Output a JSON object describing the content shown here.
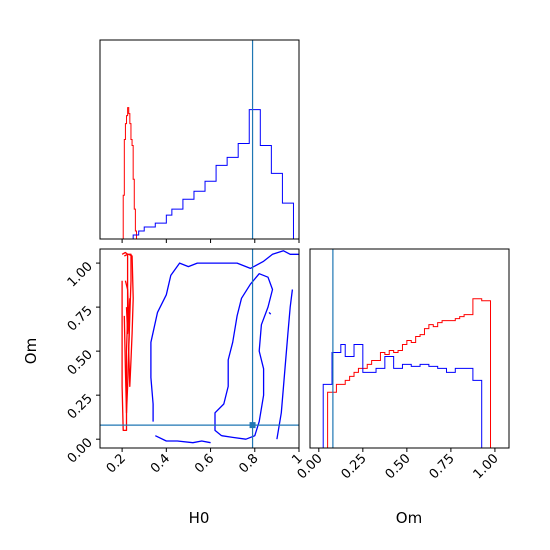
{
  "chart_data": {
    "type": "corner",
    "title": "",
    "parameters": [
      "H0",
      "Om"
    ],
    "truth": {
      "H0": 0.79,
      "Om": 0.08
    },
    "colors": {
      "series_red": "#ff0000",
      "series_blue": "#0000ff",
      "truth": "#1f77b4"
    },
    "panels": [
      {
        "id": "H0-marginal",
        "type": "histogram-step",
        "xlim": [
          0.1,
          1.0
        ],
        "xticks": [
          0.2,
          0.4,
          0.6,
          0.8,
          1.0
        ],
        "series": [
          {
            "color": "red",
            "x": [
              0.2,
              0.205,
              0.21,
              0.215,
              0.22,
              0.225,
              0.23,
              0.235,
              0.24,
              0.245,
              0.25,
              0.255,
              0.26,
              0.265
            ],
            "density": [
              0.0,
              0.22,
              0.5,
              0.58,
              0.62,
              0.66,
              0.63,
              0.58,
              0.5,
              0.47,
              0.3,
              0.15,
              0.04,
              0.0
            ]
          },
          {
            "color": "blue",
            "x": [
              0.1,
              0.125,
              0.15,
              0.175,
              0.2,
              0.225,
              0.25,
              0.275,
              0.3,
              0.325,
              0.35,
              0.375,
              0.4,
              0.425,
              0.45,
              0.475,
              0.5,
              0.525,
              0.55,
              0.575,
              0.6,
              0.625,
              0.65,
              0.675,
              0.7,
              0.725,
              0.75,
              0.775,
              0.8,
              0.825,
              0.85,
              0.875,
              0.9,
              0.925,
              0.95,
              0.975,
              1.0
            ],
            "density": [
              0.0,
              0.0,
              0.0,
              0.0,
              0.0,
              0.0,
              0.02,
              0.04,
              0.06,
              0.06,
              0.08,
              0.08,
              0.12,
              0.15,
              0.15,
              0.2,
              0.2,
              0.24,
              0.24,
              0.29,
              0.29,
              0.37,
              0.37,
              0.41,
              0.41,
              0.48,
              0.48,
              0.65,
              0.65,
              0.47,
              0.47,
              0.33,
              0.33,
              0.18,
              0.18,
              0.0,
              0.0
            ]
          }
        ]
      },
      {
        "id": "H0-Om-joint",
        "type": "contour",
        "xlabel": "H0",
        "ylabel": "Om",
        "xlim": [
          0.1,
          1.0
        ],
        "ylim": [
          -0.05,
          1.08
        ],
        "xticks": [
          0.2,
          0.4,
          0.6,
          0.8,
          1.0
        ],
        "yticks": [
          0.0,
          0.25,
          0.5,
          0.75,
          1.0
        ],
        "ytick_labels": [
          "0.00",
          "0.25",
          "0.50",
          "0.75",
          "1.00"
        ],
        "contours": [
          {
            "color": "red",
            "points": [
              [
                0.2,
                1.05
              ],
              [
                0.215,
                1.06
              ],
              [
                0.225,
                1.05
              ],
              [
                0.225,
                0.9
              ],
              [
                0.225,
                0.7
              ],
              [
                0.22,
                0.5
              ],
              [
                0.22,
                0.35
              ],
              [
                0.22,
                0.2
              ],
              [
                0.22,
                0.05
              ],
              [
                0.205,
                0.05
              ],
              [
                0.2,
                0.3
              ],
              [
                0.2,
                0.6
              ],
              [
                0.2,
                0.9
              ]
            ]
          },
          {
            "color": "red",
            "points": [
              [
                0.21,
                1.04
              ],
              [
                0.225,
                1.05
              ],
              [
                0.24,
                1.05
              ],
              [
                0.24,
                0.9
              ],
              [
                0.235,
                0.7
              ],
              [
                0.23,
                0.5
              ],
              [
                0.225,
                0.3
              ],
              [
                0.22,
                0.15
              ],
              [
                0.215,
                0.4
              ],
              [
                0.21,
                0.7
              ]
            ]
          },
          {
            "color": "red",
            "points": [
              [
                0.23,
                1.05
              ],
              [
                0.245,
                1.04
              ],
              [
                0.25,
                0.8
              ],
              [
                0.245,
                0.6
              ],
              [
                0.24,
                0.45
              ],
              [
                0.235,
                0.3
              ],
              [
                0.23,
                0.5
              ],
              [
                0.235,
                0.8
              ]
            ]
          },
          {
            "color": "red",
            "points": [
              [
                0.215,
                0.9
              ],
              [
                0.225,
                0.85
              ],
              [
                0.23,
                0.7
              ],
              [
                0.225,
                0.6
              ],
              [
                0.22,
                0.75
              ]
            ]
          },
          {
            "color": "blue",
            "points": [
              [
                0.34,
                0.1
              ],
              [
                0.34,
                0.2
              ],
              [
                0.33,
                0.35
              ],
              [
                0.33,
                0.55
              ],
              [
                0.36,
                0.72
              ],
              [
                0.4,
                0.82
              ],
              [
                0.42,
                0.93
              ],
              [
                0.46,
                1.0
              ],
              [
                0.5,
                0.98
              ],
              [
                0.54,
                1.0
              ],
              [
                0.6,
                1.0
              ],
              [
                0.66,
                1.0
              ],
              [
                0.72,
                1.0
              ],
              [
                0.78,
                0.97
              ],
              [
                0.84,
                1.01
              ],
              [
                0.88,
                1.05
              ],
              [
                0.93,
                1.07
              ],
              [
                0.96,
                1.05
              ],
              [
                1.0,
                1.05
              ]
            ]
          },
          {
            "color": "blue",
            "points": [
              [
                0.35,
                0.02
              ],
              [
                0.4,
                -0.01
              ],
              [
                0.45,
                -0.01
              ],
              [
                0.52,
                -0.02
              ],
              [
                0.56,
                -0.01
              ],
              [
                0.6,
                -0.02
              ]
            ]
          },
          {
            "color": "blue",
            "points": [
              [
                0.65,
                0.02
              ],
              [
                0.62,
                0.05
              ],
              [
                0.62,
                0.15
              ],
              [
                0.66,
                0.2
              ],
              [
                0.68,
                0.3
              ],
              [
                0.68,
                0.45
              ],
              [
                0.7,
                0.55
              ],
              [
                0.72,
                0.7
              ],
              [
                0.74,
                0.8
              ],
              [
                0.78,
                0.88
              ],
              [
                0.82,
                0.94
              ],
              [
                0.86,
                0.92
              ],
              [
                0.88,
                0.85
              ],
              [
                0.86,
                0.75
              ],
              [
                0.83,
                0.65
              ],
              [
                0.82,
                0.5
              ],
              [
                0.84,
                0.4
              ],
              [
                0.84,
                0.25
              ],
              [
                0.82,
                0.1
              ],
              [
                0.8,
                0.02
              ],
              [
                0.76,
                0.0
              ],
              [
                0.7,
                0.01
              ],
              [
                0.65,
                0.02
              ]
            ]
          },
          {
            "color": "blue",
            "points": [
              [
                0.9,
                0.0
              ],
              [
                0.92,
                0.15
              ],
              [
                0.93,
                0.3
              ],
              [
                0.94,
                0.45
              ],
              [
                0.95,
                0.6
              ],
              [
                0.96,
                0.75
              ],
              [
                0.97,
                0.85
              ]
            ]
          },
          {
            "color": "blue",
            "points": [
              [
                0.865,
                0.72
              ],
              [
                0.872,
                0.71
              ]
            ]
          }
        ]
      },
      {
        "id": "Om-marginal",
        "type": "histogram-step",
        "xlabel": "Om",
        "xlim": [
          -0.05,
          1.08
        ],
        "xticks": [
          0.0,
          0.25,
          0.5,
          0.75,
          1.0
        ],
        "xtick_labels": [
          "0.00",
          "0.25",
          "0.50",
          "0.75",
          "1.00"
        ],
        "series": [
          {
            "color": "red",
            "x": [
              0.0,
              0.025,
              0.05,
              0.075,
              0.1,
              0.125,
              0.15,
              0.175,
              0.2,
              0.225,
              0.25,
              0.275,
              0.3,
              0.325,
              0.35,
              0.375,
              0.4,
              0.425,
              0.45,
              0.475,
              0.5,
              0.525,
              0.55,
              0.575,
              0.6,
              0.625,
              0.65,
              0.675,
              0.7,
              0.725,
              0.75,
              0.775,
              0.8,
              0.825,
              0.85,
              0.875,
              0.9,
              0.925,
              0.95,
              0.975,
              1.0
            ],
            "density": [
              0.0,
              0.0,
              0.28,
              0.28,
              0.32,
              0.32,
              0.34,
              0.36,
              0.38,
              0.4,
              0.4,
              0.42,
              0.44,
              0.44,
              0.48,
              0.47,
              0.49,
              0.48,
              0.49,
              0.52,
              0.54,
              0.53,
              0.56,
              0.57,
              0.6,
              0.62,
              0.61,
              0.63,
              0.64,
              0.64,
              0.64,
              0.65,
              0.66,
              0.67,
              0.67,
              0.75,
              0.75,
              0.74,
              0.74,
              0.0,
              0.0
            ]
          },
          {
            "color": "blue",
            "x": [
              0.0,
              0.025,
              0.05,
              0.075,
              0.1,
              0.125,
              0.15,
              0.175,
              0.2,
              0.225,
              0.25,
              0.275,
              0.3,
              0.325,
              0.35,
              0.375,
              0.4,
              0.425,
              0.45,
              0.475,
              0.5,
              0.525,
              0.55,
              0.575,
              0.6,
              0.625,
              0.65,
              0.675,
              0.7,
              0.725,
              0.75,
              0.775,
              0.8,
              0.825,
              0.85,
              0.875,
              0.9,
              0.925,
              0.95,
              0.975,
              1.0
            ],
            "density": [
              0.0,
              0.32,
              0.32,
              0.48,
              0.48,
              0.52,
              0.46,
              0.46,
              0.52,
              0.52,
              0.38,
              0.38,
              0.38,
              0.4,
              0.4,
              0.46,
              0.46,
              0.4,
              0.4,
              0.42,
              0.42,
              0.41,
              0.41,
              0.42,
              0.42,
              0.41,
              0.41,
              0.4,
              0.4,
              0.38,
              0.38,
              0.4,
              0.4,
              0.4,
              0.4,
              0.34,
              0.34,
              0.0,
              0.0,
              0.0,
              0.0
            ]
          }
        ]
      }
    ]
  }
}
